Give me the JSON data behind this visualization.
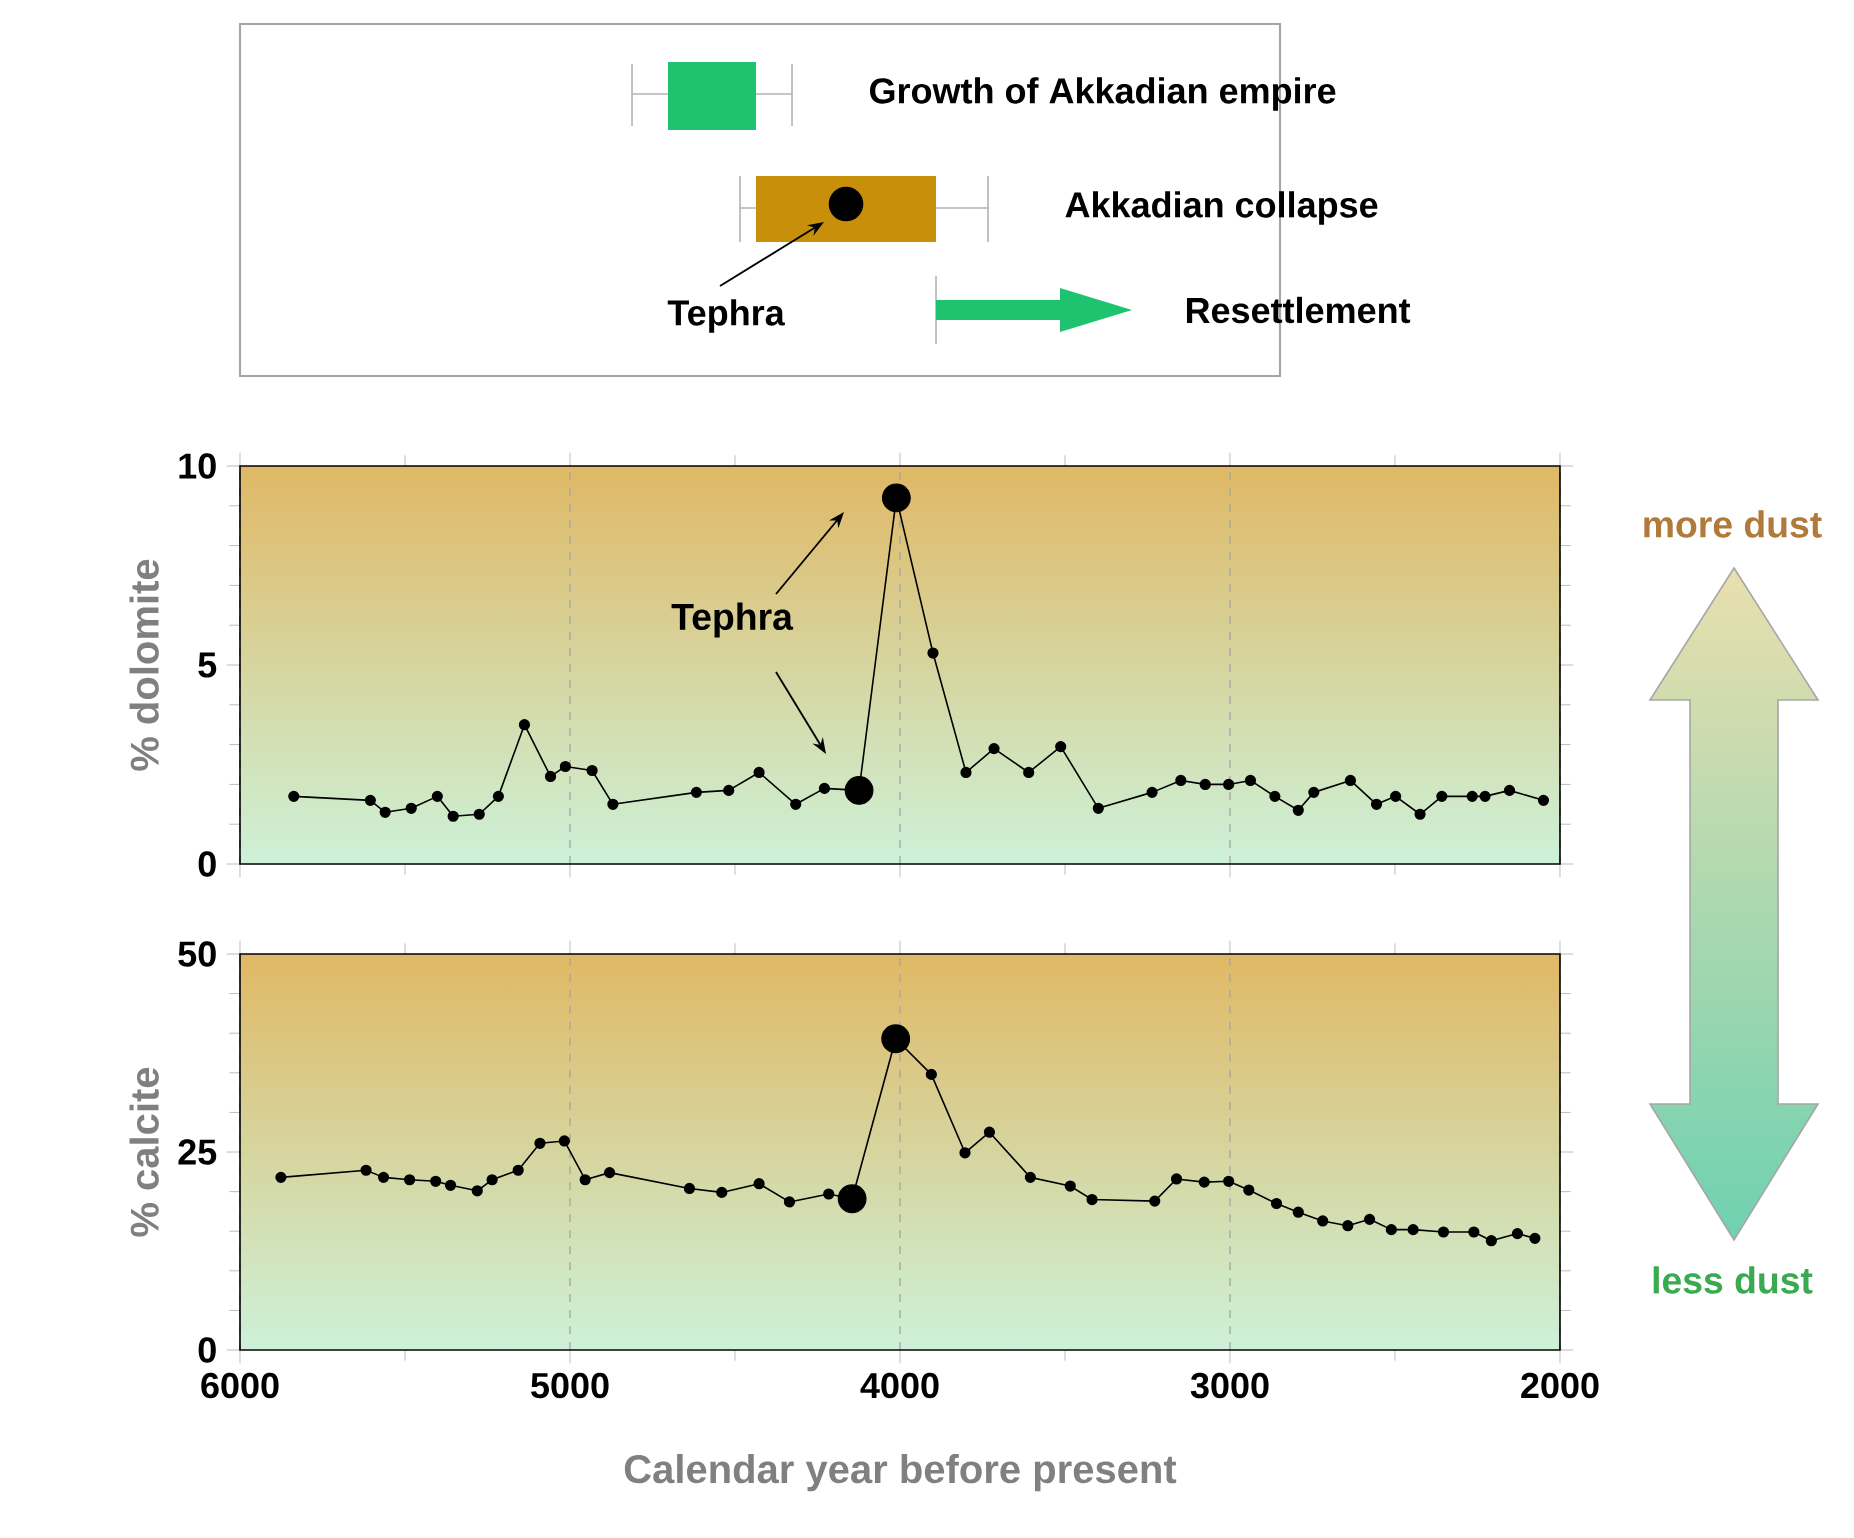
{
  "chart_data": [
    {
      "type": "other",
      "annotations": [
        "Growth of Akkadian empire",
        "Akkadian collapse",
        "Tephra",
        "Resettlement"
      ]
    },
    {
      "type": "line",
      "ylabel": "% dolomite",
      "xlim": [
        6000,
        2000
      ],
      "xticks": [
        6000,
        5000,
        4000,
        3000,
        2000
      ],
      "ylim": [
        0,
        10
      ],
      "yticks": [
        0,
        5,
        10
      ],
      "grid": "x",
      "tick_labels": "y",
      "marker": "circle",
      "annotations": [
        "Tephra",
        "more dust"
      ],
      "series": [
        {
          "type": "line",
          "color": "#000000",
          "x": [
            5837,
            5605,
            5560,
            5481,
            5402,
            5354,
            5275,
            5217,
            5138,
            5059,
            5014,
            4933,
            4870,
            4617,
            4519,
            4427,
            4316,
            4229,
            4124,
            4011,
            3900,
            3800,
            3715,
            3610,
            3513,
            3399,
            3236,
            3149,
            3075,
            3004,
            2938,
            2864,
            2793,
            2746,
            2635,
            2556,
            2498,
            2424,
            2358,
            2266,
            2227,
            2153,
            2050
          ],
          "values": [
            1.7,
            1.6,
            1.3,
            1.4,
            1.7,
            1.2,
            1.25,
            1.7,
            3.5,
            2.2,
            2.45,
            2.35,
            1.5,
            1.8,
            1.85,
            2.3,
            1.5,
            1.9,
            1.85,
            9.2,
            5.3,
            2.3,
            2.9,
            2.3,
            2.95,
            1.4,
            1.8,
            2.1,
            2.0,
            2.0,
            2.1,
            1.7,
            1.35,
            1.8,
            2.1,
            1.5,
            1.7,
            1.25,
            1.7,
            1.7,
            1.7,
            1.85,
            1.6
          ]
        },
        {
          "type": "scatter",
          "color": "#000000",
          "x": [
            4124,
            4011
          ],
          "values": [
            1.85,
            9.2
          ]
        }
      ]
    },
    {
      "type": "line",
      "ylabel": "% calcite",
      "xlabel": "Calendar year before present",
      "xlim": [
        6000,
        2000
      ],
      "xticks": [
        6000,
        5000,
        4000,
        3000,
        2000
      ],
      "ylim": [
        0,
        50
      ],
      "yticks": [
        0,
        25,
        50
      ],
      "grid": "x",
      "marker": "circle",
      "annotations": [
        "less dust"
      ],
      "series": [
        {
          "type": "line",
          "color": "#000000",
          "x": [
            5876,
            5618,
            5565,
            5486,
            5407,
            5362,
            5281,
            5236,
            5157,
            5091,
            5017,
            4954,
            4880,
            4638,
            4540,
            4427,
            4335,
            4216,
            4145,
            4013,
            3905,
            3803,
            3729,
            3605,
            3484,
            3418,
            3228,
            3162,
            3078,
            3004,
            2943,
            2859,
            2793,
            2719,
            2643,
            2577,
            2511,
            2445,
            2353,
            2261,
            2208,
            2129,
            2076
          ],
          "values": [
            21.8,
            22.7,
            21.8,
            21.5,
            21.3,
            20.8,
            20.1,
            21.5,
            22.7,
            26.1,
            26.4,
            21.5,
            22.4,
            20.4,
            19.9,
            21.0,
            18.7,
            19.7,
            19.1,
            39.3,
            34.8,
            24.9,
            27.5,
            21.8,
            20.7,
            19.0,
            18.8,
            21.6,
            21.2,
            21.3,
            20.2,
            18.5,
            17.4,
            16.3,
            15.7,
            16.5,
            15.2,
            15.2,
            14.9,
            14.9,
            13.8,
            14.7,
            14.1
          ]
        },
        {
          "type": "scatter",
          "color": "#000000",
          "x": [
            4145,
            4013
          ],
          "values": [
            19.1,
            39.3
          ]
        }
      ]
    }
  ]
}
